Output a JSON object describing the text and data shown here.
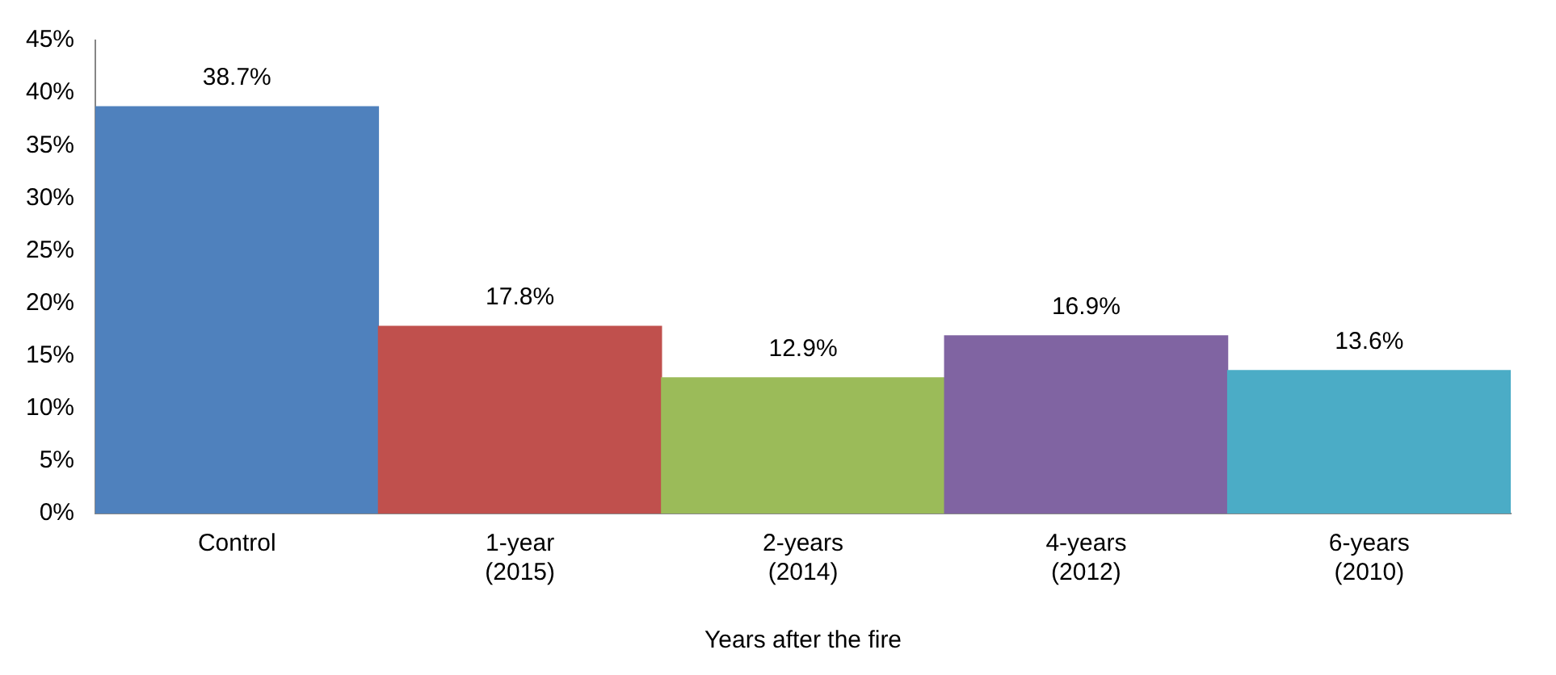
{
  "chart_data": {
    "type": "bar",
    "xlabel": "Years after the fire",
    "categories": [
      "Control",
      "1-year (2015)",
      "2-years (2014)",
      "4-years (2012)",
      "6-years (2010)"
    ],
    "values": [
      38.7,
      17.8,
      12.9,
      16.9,
      13.6
    ],
    "colors": [
      "#4f81bd",
      "#c0504d",
      "#9bbb59",
      "#8064a2",
      "#4bacc6"
    ],
    "value_labels": [
      "38.7%",
      "17.8%",
      "12.9%",
      "16.9%",
      "13.6%"
    ],
    "ylim": [
      0,
      45
    ],
    "yticks": [
      {
        "value": 0,
        "label": "0%"
      },
      {
        "value": 5,
        "label": "5%"
      },
      {
        "value": 10,
        "label": "10%"
      },
      {
        "value": 15,
        "label": "15%"
      },
      {
        "value": 20,
        "label": "20%"
      },
      {
        "value": 25,
        "label": "25%"
      },
      {
        "value": 30,
        "label": "30%"
      },
      {
        "value": 35,
        "label": "35%"
      },
      {
        "value": 40,
        "label": "40%"
      },
      {
        "value": 45,
        "label": "45%"
      }
    ],
    "grid": false,
    "legend": false
  }
}
